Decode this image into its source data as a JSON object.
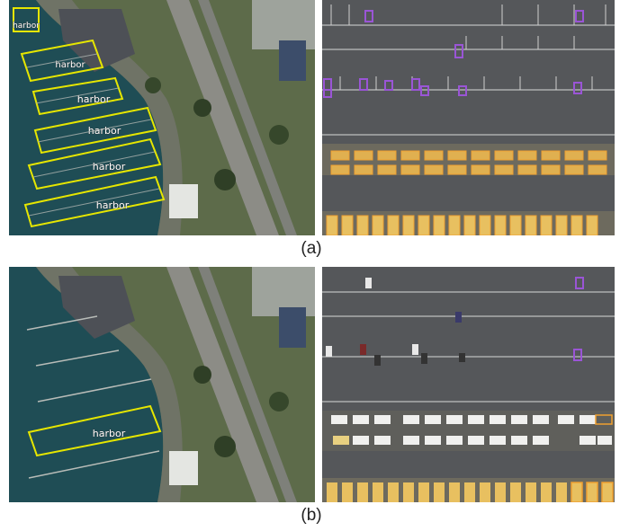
{
  "figure": {
    "caption_a": "(a)",
    "caption_b": "(b)"
  },
  "panel_a_left": {
    "boxes": [
      {
        "label": "harbor"
      },
      {
        "label": "harbor"
      },
      {
        "label": "harbor"
      },
      {
        "label": "harbor"
      },
      {
        "label": "harbor"
      },
      {
        "label": "harbor"
      }
    ]
  },
  "panel_b_left": {
    "boxes": [
      {
        "label": "harbor"
      }
    ]
  },
  "colors": {
    "harbor_box": "#e6e600",
    "vehicle_box_purple": "#9a55d6",
    "vehicle_box_orange": "#f0a030",
    "water": "#1e4a52",
    "parking_lot": "#55575a"
  }
}
